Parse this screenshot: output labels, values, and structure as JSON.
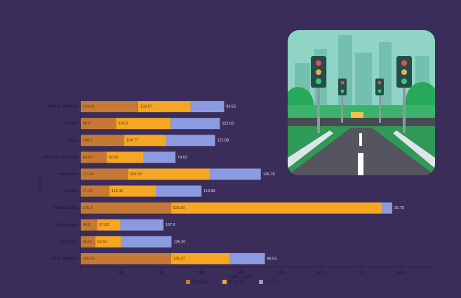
{
  "chart_data": {
    "type": "stacked-bar-horizontal",
    "x_label": "In Rs. Crore",
    "y_label": "State/UT",
    "categories": [
      "Andhra Pradesh",
      "Assam",
      "Bihar",
      "Himachal Pradesh",
      "Karnataka",
      "Kerala",
      "Maharashtra",
      "Meghalaya",
      "Mizoram",
      "Uttar Pradesh"
    ],
    "series": [
      {
        "name": "2015-16",
        "color": "#c47a35",
        "values": [
          143.41,
          88.5,
          108.5,
          64.42,
          117.86,
          71.72,
          225.3,
          40.8,
          36.67,
          225.65
        ],
        "value_labels": [
          "143.41",
          "88.5",
          "108.5",
          "64.42",
          "117.86",
          "71.72",
          "225.3",
          "40.8",
          "36.67",
          "225.65"
        ]
      },
      {
        "name": "2016-17",
        "color": "#f5a623",
        "values": [
          130.67,
          135.9,
          104.77,
          92.85,
          204.53,
          115.46,
          525.83,
          57.83,
          64.5,
          145.07
        ],
        "value_labels": [
          "130.67",
          "135.9",
          "104.77",
          "92.85",
          "204.53",
          "115.46",
          "525.83",
          "57.83",
          "64.50",
          "145.07"
        ]
      },
      {
        "name": "2017-18",
        "color": "#8c9be0",
        "values": [
          83.52,
          122.63,
          121.68,
          79.02,
          126.78,
          113.99,
          25.75,
          107.6,
          125.3,
          88.53
        ],
        "value_labels": [
          "83.52",
          "122.63",
          "121.68",
          "79.02",
          "126.78",
          "113.99",
          "25.75",
          "107.6",
          "125.30",
          "88.53"
        ]
      }
    ],
    "xlim": [
      0,
      880
    ],
    "xticks": [
      0,
      100,
      200,
      300,
      400,
      500,
      600,
      700,
      800
    ]
  }
}
